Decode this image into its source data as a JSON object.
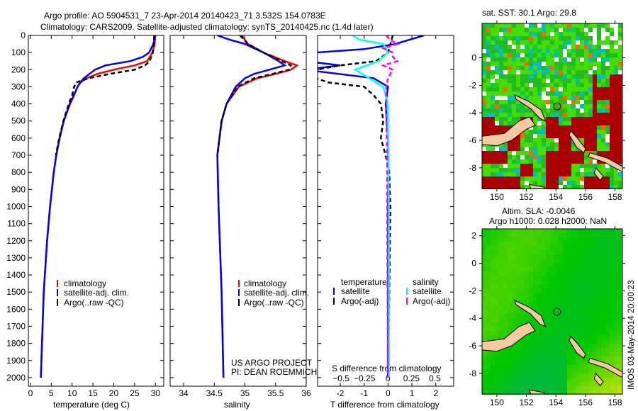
{
  "header": {
    "title_line1": "Argo profile: AO 5904531_7 23-Apr-2014 20140423_71 3.532S 154.0783E",
    "title_line2": "Climatology: CARS2009. Satellite-adjusted climatology: synTS_20140425.nc (1.4d later)"
  },
  "colors": {
    "climatology": "#ff0000",
    "satellite": "#0000ff",
    "argo": "#000000",
    "sal_satellite": "#00ffff",
    "sal_argo": "#ff00ff"
  },
  "chart_data": [
    {
      "type": "line",
      "id": "temperature",
      "xlabel": "temperature (deg C)",
      "ylabel": "",
      "xlim": [
        -0.5,
        32
      ],
      "ylim": [
        0,
        2050
      ],
      "xticks": [
        0,
        5,
        10,
        15,
        20,
        25,
        30
      ],
      "yticks": [
        0,
        100,
        200,
        300,
        400,
        500,
        600,
        700,
        800,
        900,
        1000,
        1100,
        1200,
        1300,
        1400,
        1500,
        1600,
        1700,
        1800,
        1900,
        2000
      ],
      "legend": [
        "climatology",
        "satellite-adj. clim.",
        "Argo(..raw -QC)"
      ],
      "series": [
        {
          "name": "climatology",
          "color": "#ff0000",
          "depth": [
            0,
            50,
            100,
            150,
            175,
            200,
            225,
            250,
            275,
            300,
            350,
            400,
            500,
            600,
            700,
            800,
            1000,
            1200,
            1500,
            2000
          ],
          "values": [
            30,
            29.8,
            29.3,
            28,
            25,
            20,
            16,
            13.5,
            12,
            11.3,
            10.5,
            9.5,
            8,
            7,
            6.2,
            5.6,
            4.7,
            4,
            3.2,
            2.5
          ]
        },
        {
          "name": "satellite-adj. clim.",
          "color": "#0000ff",
          "depth": [
            0,
            50,
            100,
            125,
            150,
            175,
            200,
            250,
            275,
            300,
            350,
            400,
            500,
            600,
            700,
            800,
            1000,
            1200,
            1500,
            2000
          ],
          "values": [
            30,
            29.5,
            28.5,
            27,
            24,
            18,
            15.5,
            12.8,
            12,
            11.3,
            10.4,
            9.4,
            8,
            7,
            6.2,
            5.6,
            4.7,
            4,
            3.2,
            2.5
          ]
        },
        {
          "name": "Argo(..raw -QC)",
          "color": "#000000",
          "dashed": true,
          "depth": [
            0,
            50,
            100,
            150,
            175,
            200,
            225,
            250,
            275,
            300,
            350,
            400,
            500,
            600,
            700
          ],
          "values": [
            29.7,
            29.6,
            29.4,
            28.6,
            27.5,
            25,
            19,
            14,
            11,
            10.5,
            10,
            9.2,
            7.9,
            6.9,
            6.1
          ]
        }
      ]
    },
    {
      "type": "line",
      "id": "salinity",
      "xlabel": "salinity",
      "xlim": [
        33.78,
        36
      ],
      "ylim": [
        0,
        2050
      ],
      "xticks": [
        34,
        34.5,
        35,
        35.5,
        36
      ],
      "legend": [
        "climatology",
        "satellite-adj. clim.",
        "Argo(..raw -QC)"
      ],
      "annotation": [
        "US ARGO PROJECT",
        "PI: DEAN ROEMMICH"
      ],
      "series": [
        {
          "name": "climatology",
          "color": "#ff0000",
          "depth": [
            0,
            50,
            100,
            150,
            175,
            200,
            225,
            250,
            300,
            400,
            500,
            700,
            1000,
            1500,
            2000
          ],
          "values": [
            34.95,
            35.05,
            35.3,
            35.65,
            35.85,
            35.75,
            35.5,
            35.2,
            34.9,
            34.7,
            34.62,
            34.55,
            34.57,
            34.62,
            34.65
          ]
        },
        {
          "name": "satellite-adj. clim.",
          "color": "#0000ff",
          "depth": [
            0,
            25,
            50,
            100,
            150,
            175,
            200,
            225,
            250,
            300,
            400,
            500,
            700,
            1000,
            1500,
            2000
          ],
          "values": [
            34.55,
            34.75,
            35.0,
            35.3,
            35.55,
            35.65,
            35.4,
            35.15,
            35.0,
            34.85,
            34.7,
            34.62,
            34.55,
            34.57,
            34.62,
            34.65
          ]
        },
        {
          "name": "Argo(..raw -QC)",
          "color": "#000000",
          "dashed": true,
          "depth": [
            0,
            50,
            100,
            150,
            175,
            200,
            225,
            250,
            300,
            400,
            500,
            700
          ],
          "values": [
            34.92,
            35.05,
            35.3,
            35.6,
            35.75,
            35.72,
            35.45,
            35.15,
            34.88,
            34.7,
            34.62,
            34.55
          ]
        }
      ]
    },
    {
      "type": "line",
      "id": "difference",
      "xlabel": "T difference from climatology",
      "x2label": "S difference from climatology",
      "xlim": [
        -2.95,
        2.75
      ],
      "ylim": [
        0,
        2050
      ],
      "xticks": [
        -2,
        -1,
        0,
        1,
        2
      ],
      "x2lim": [
        -0.75,
        0.7
      ],
      "x2ticks": [
        -0.5,
        -0.25,
        0,
        0.25,
        0.5
      ],
      "legend_titles": [
        "temperature",
        "salinity"
      ],
      "legend": [
        "satellite",
        "Argo(-adj)",
        "satellite",
        "Argo(-adj)"
      ],
      "series": [
        {
          "name": "temperature satellite",
          "color": "#0000ff",
          "axis": "T",
          "depth": [
            0,
            50,
            80,
            100,
            125,
            150,
            175,
            200,
            250,
            300,
            400,
            500,
            600,
            700,
            800,
            1000,
            1500,
            2000
          ],
          "values": [
            1.5,
            0.3,
            -1,
            -3,
            -3,
            -3.5,
            -2,
            -3.5,
            -0.6,
            0,
            -0.1,
            -0.05,
            0,
            0,
            0.02,
            0,
            0,
            0
          ]
        },
        {
          "name": "temperature Argo(-adj)",
          "color": "#000000",
          "axis": "T",
          "dashed": true,
          "depth": [
            0,
            100,
            150,
            175,
            200,
            225,
            250,
            275,
            300,
            350,
            400,
            500,
            600,
            700,
            800,
            1000,
            1500,
            2000
          ],
          "values": [
            0.2,
            0,
            -0.5,
            -2,
            -3,
            -3,
            -3,
            -2.5,
            -1,
            -0.6,
            -0.3,
            -0.2,
            -0.3,
            -0.1,
            0.05,
            0.1,
            0.05,
            0
          ]
        },
        {
          "name": "salinity satellite",
          "color": "#00ffff",
          "axis": "S",
          "depth": [
            0,
            25,
            50,
            100,
            150,
            200,
            250,
            300,
            400,
            600,
            1000,
            2000
          ],
          "values": [
            -0.38,
            -0.3,
            -0.05,
            0,
            -0.1,
            -0.35,
            -0.2,
            -0.05,
            0,
            0,
            0.01,
            0.01
          ]
        },
        {
          "name": "salinity Argo(-adj)",
          "color": "#ff00ff",
          "axis": "S",
          "dashed": true,
          "depth": [
            0,
            25,
            50,
            75,
            100,
            125,
            150,
            175,
            200,
            250,
            300,
            400,
            700,
            1000,
            2000
          ],
          "values": [
            -0.02,
            0.02,
            0.1,
            -0.05,
            0.05,
            0.05,
            0.1,
            -0.05,
            0.05,
            0.0,
            -0.02,
            -0.02,
            -0.01,
            -0.01,
            0
          ]
        }
      ]
    },
    {
      "type": "heatmap",
      "id": "sst-map",
      "title": "sat. SST: 30.1 Argo: 29.8",
      "xlim": [
        149,
        158.5
      ],
      "ylim": [
        -9.5,
        2.5
      ],
      "xticks": [
        150,
        152,
        154,
        156,
        158
      ],
      "yticks": [
        0,
        -2,
        -4,
        -6,
        -8
      ],
      "argo_position": [
        154.08,
        -3.53
      ]
    },
    {
      "type": "heatmap",
      "id": "sla-map",
      "title": "Altim. SLA: -0.0046",
      "subtitle": "Argo h1000: 0.028 h2000: NaN",
      "xlim": [
        149,
        158.5
      ],
      "ylim": [
        -9.5,
        2.5
      ],
      "xticks": [
        150,
        152,
        154,
        156,
        158
      ],
      "yticks": [
        2,
        0,
        -2,
        -4,
        -6,
        -8
      ],
      "argo_position": [
        154.08,
        -3.53
      ]
    }
  ],
  "footer": {
    "timestamp": "IMOS 03-May-2014 20:00:23"
  }
}
